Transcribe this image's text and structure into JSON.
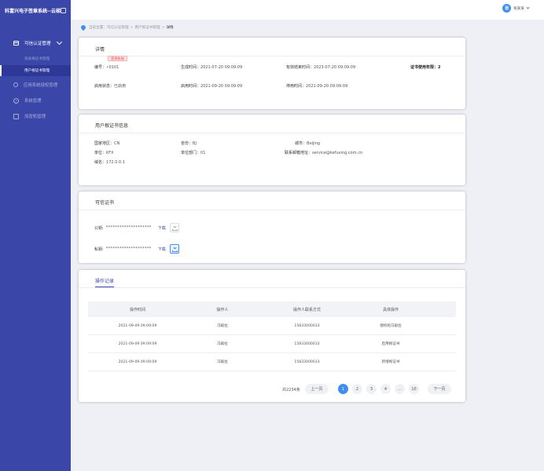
{
  "app": {
    "title": "科富兴电子签章系统--云梯"
  },
  "sidebar": {
    "group_label": "可信认证管理",
    "sub_items": [
      {
        "label": "系统根证书管理"
      },
      {
        "label": "用户根证书管理"
      }
    ],
    "items": [
      {
        "label": "应用系统授权管理",
        "icon": "search-icon"
      },
      {
        "label": "系统管理",
        "icon": "gear-icon"
      },
      {
        "label": "加密机管理",
        "icon": "box-icon"
      }
    ]
  },
  "header": {
    "avatar_text": "张",
    "username": "张某某"
  },
  "breadcrumb": {
    "prefix": "当前位置：",
    "items": [
      "可信认证管理",
      "用户根证书管理"
    ],
    "current": "详情"
  },
  "detail": {
    "title": "详情",
    "badge": "签将失效",
    "fields": [
      {
        "label": "编号：",
        "value": "0101"
      },
      {
        "label": "生成时间：",
        "value": "2021-07-20 09:09:09"
      },
      {
        "label": "有效结束时间：",
        "value": "2023-07-20 09:09:09"
      },
      {
        "label": "证书使用年限：",
        "value": "2"
      },
      {
        "label": "启用状态：",
        "value": "已启用"
      },
      {
        "label": "启用时间：",
        "value": "2021-09-20 09:09:09"
      },
      {
        "label": "停用时间：",
        "value": "2021-09-20 09:09:09"
      }
    ]
  },
  "user_cert": {
    "title": "用户根证书信息",
    "fields": [
      {
        "label": "国家地区：",
        "value": "CN"
      },
      {
        "label": "省份：",
        "value": "BJ"
      },
      {
        "label": "城市：",
        "value": "Beijing"
      },
      {
        "label": "单位：",
        "value": "KFX"
      },
      {
        "label": "单位部门：",
        "value": "01"
      },
      {
        "label": "联系邮箱地址：",
        "value": "service@kefuxing.com.cn"
      },
      {
        "label": "域名：",
        "value": "172.0.0.1"
      }
    ]
  },
  "trusted_cert": {
    "title": "可信证书",
    "public_key": {
      "label": "公钥:",
      "value": "********************",
      "download": "下载"
    },
    "private_key": {
      "label": "私钥:",
      "value": "********************",
      "download": "下载"
    }
  },
  "operation_log": {
    "tab": "操作记录",
    "columns": [
      "操作时间",
      "操作人",
      "操作人联系方式",
      "具体操作"
    ],
    "rows": [
      [
        "2021-09-09  09:09:09",
        "冯毅拉",
        "15833000033",
        "授权给冯毅拉"
      ],
      [
        "2021-09-09  09:09:09",
        "冯毅拉",
        "15833000033",
        "启用根证书"
      ],
      [
        "2021-09-09  09:09:09",
        "冯毅拉",
        "15833000033",
        "新增根证书"
      ]
    ],
    "pagination": {
      "total": "共2234条",
      "prev": "上一页",
      "pages": [
        "1",
        "2",
        "3",
        "4",
        "...",
        "10"
      ],
      "current": "1",
      "next": "下一页"
    }
  },
  "colors": {
    "sidebar": "#3a46a8",
    "accent": "#3f8ef0",
    "warning": "#e54545"
  }
}
